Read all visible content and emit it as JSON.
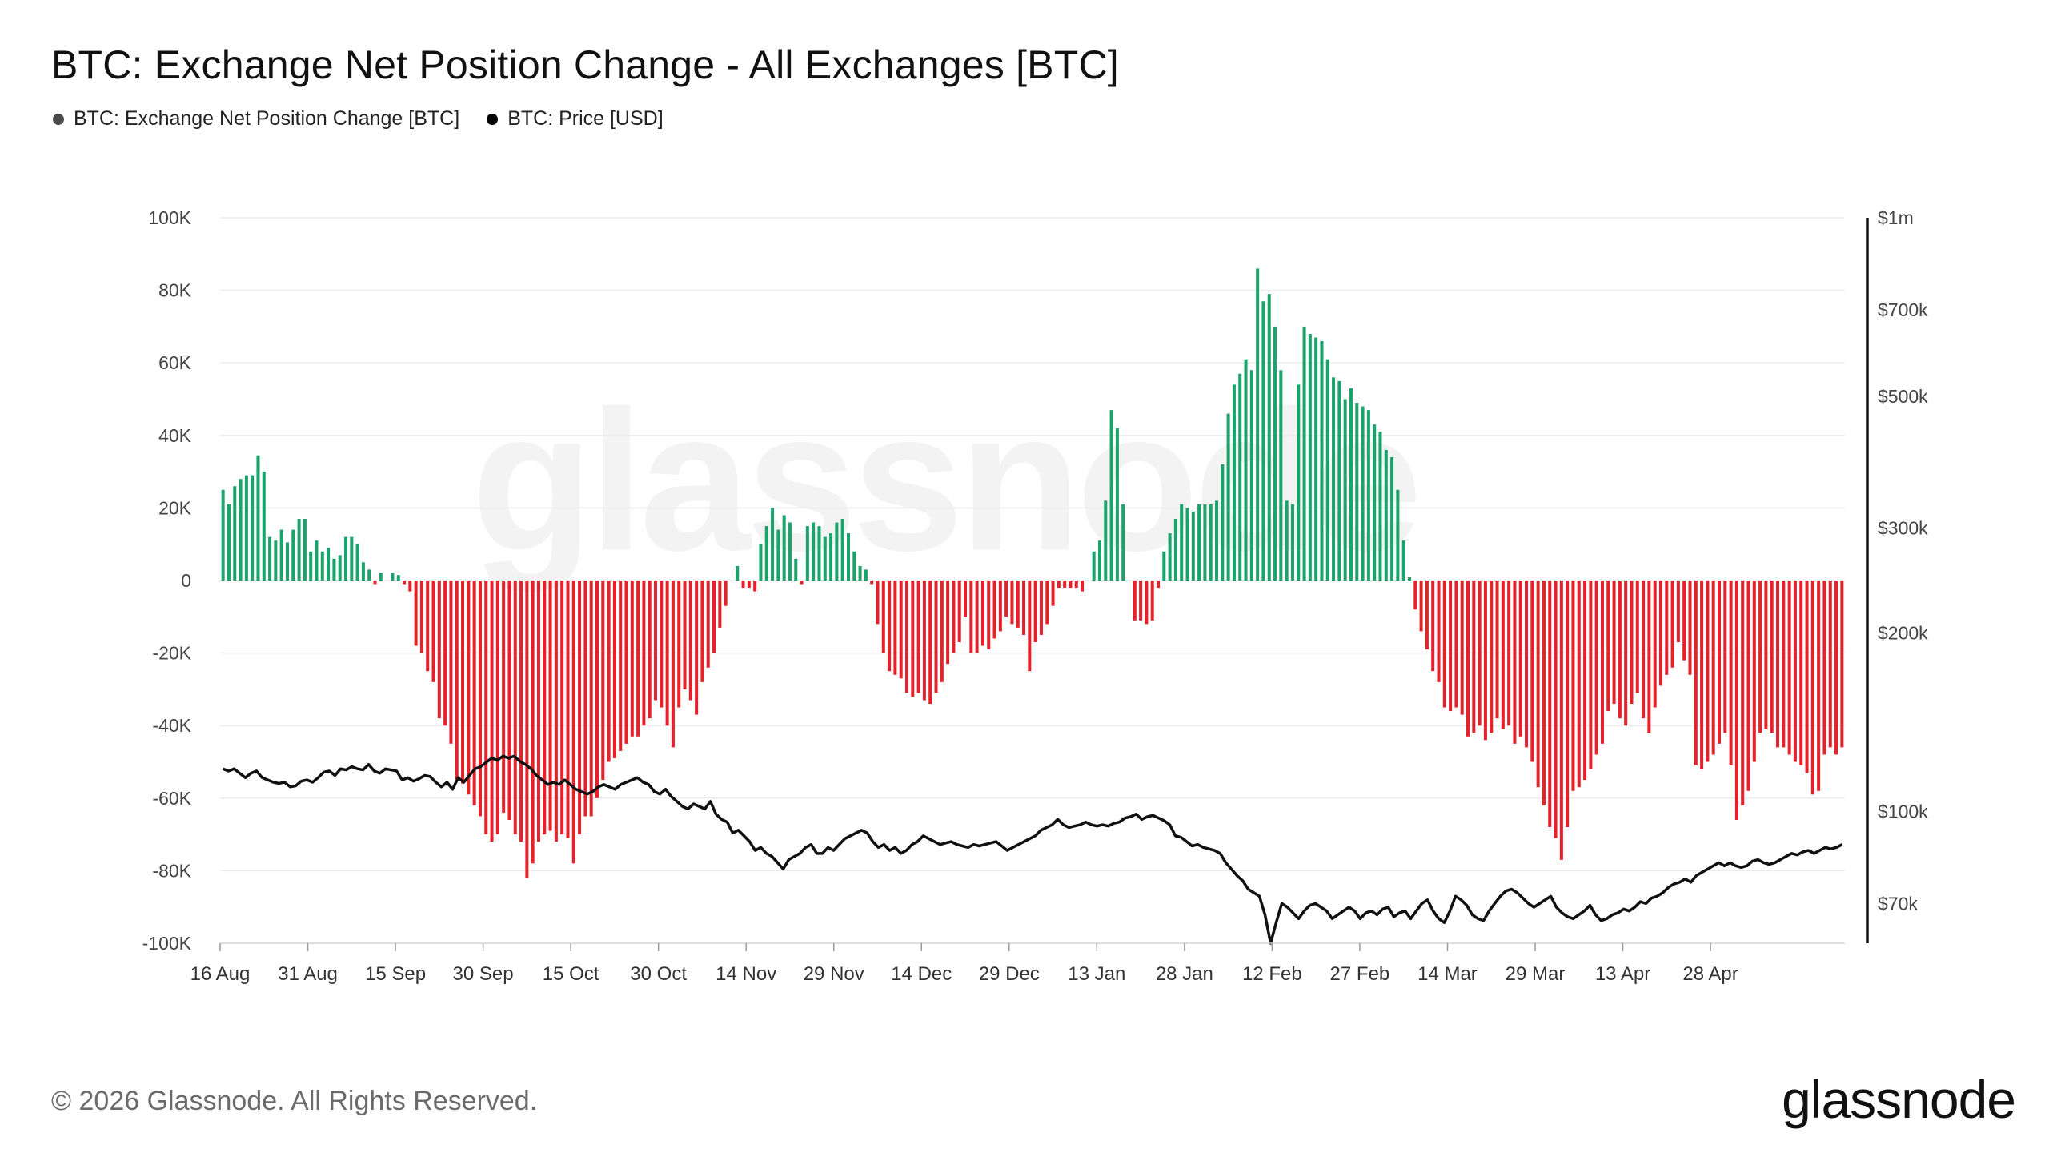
{
  "title": "BTC: Exchange Net Position Change - All Exchanges [BTC]",
  "legend": [
    {
      "label": "BTC: Exchange Net Position Change [BTC]",
      "color": "#4a4a4a"
    },
    {
      "label": "BTC: Price [USD]",
      "color": "#000000"
    }
  ],
  "watermark": "glassnode",
  "footer": "© 2026 Glassnode. All Rights Reserved.",
  "logo": "glassnode",
  "colors": {
    "positive": "#1aa36b",
    "negative": "#e5222b",
    "price_line": "#111111",
    "grid": "#ececec"
  },
  "chart_data": {
    "type": "bar",
    "title": "BTC: Exchange Net Position Change - All Exchanges [BTC]",
    "x_tick_labels": [
      "16 Aug",
      "31 Aug",
      "15 Sep",
      "30 Sep",
      "15 Oct",
      "30 Oct",
      "14 Nov",
      "29 Nov",
      "14 Dec",
      "29 Dec",
      "13 Jan",
      "28 Jan",
      "12 Feb",
      "27 Feb",
      "14 Mar",
      "29 Mar",
      "13 Apr",
      "28 Apr"
    ],
    "left_axis": {
      "ticks": [
        100000,
        80000,
        60000,
        40000,
        20000,
        0,
        -20000,
        -40000,
        -60000,
        -80000,
        -100000
      ],
      "tick_labels": [
        "100K",
        "80K",
        "60K",
        "40K",
        "20K",
        "0",
        "-20K",
        "-40K",
        "-60K",
        "-80K",
        "-100K"
      ],
      "ylim": [
        -100000,
        100000
      ]
    },
    "right_axis": {
      "scale": "log",
      "ticks": [
        1000000,
        700000,
        500000,
        300000,
        200000,
        100000,
        70000
      ],
      "tick_labels": [
        "$1m",
        "$700k",
        "$500k",
        "$300k",
        "$200k",
        "$100k",
        "$70k"
      ],
      "ylim": [
        60000,
        1000000
      ]
    },
    "grid": true,
    "series": [
      {
        "name": "BTC: Exchange Net Position Change [BTC]",
        "kind": "bar",
        "positive_color": "#1aa36b",
        "negative_color": "#e5222b",
        "values": [
          25000,
          21000,
          26000,
          28000,
          29000,
          29000,
          34500,
          30000,
          12000,
          11000,
          14000,
          10500,
          14000,
          17000,
          17000,
          8000,
          11000,
          8000,
          9000,
          6000,
          7000,
          12000,
          12000,
          10000,
          5000,
          3000,
          -1000,
          2000,
          0,
          2000,
          1500,
          -1000,
          -3000,
          -18000,
          -20000,
          -25000,
          -28000,
          -38000,
          -40000,
          -45000,
          -55000,
          -56000,
          -59000,
          -62000,
          -65000,
          -70000,
          -72000,
          -70000,
          -64000,
          -66000,
          -70000,
          -72000,
          -82000,
          -78000,
          -72000,
          -70000,
          -69000,
          -72000,
          -70000,
          -71000,
          -78000,
          -70000,
          -65000,
          -65000,
          -60000,
          -55000,
          -50000,
          -49000,
          -47000,
          -45000,
          -43000,
          -43000,
          -40000,
          -38000,
          -33000,
          -35000,
          -40000,
          -46000,
          -35000,
          -30000,
          -33000,
          -37000,
          -28000,
          -24000,
          -20000,
          -13000,
          -7000,
          0,
          4000,
          -2000,
          -2000,
          -3000,
          10000,
          15000,
          20000,
          14000,
          18000,
          16000,
          6000,
          -1000,
          15000,
          16000,
          15000,
          12000,
          13000,
          16000,
          17000,
          13000,
          8000,
          4000,
          3000,
          -1000,
          -12000,
          -20000,
          -25000,
          -26000,
          -27000,
          -31000,
          -32000,
          -31000,
          -33000,
          -34000,
          -31000,
          -28000,
          -23000,
          -20000,
          -17000,
          -10000,
          -20000,
          -20000,
          -18000,
          -19000,
          -16000,
          -14000,
          -10000,
          -12000,
          -13000,
          -15000,
          -25000,
          -17000,
          -15000,
          -12000,
          -7000,
          -2000,
          -2000,
          -2000,
          -2000,
          -3000,
          0,
          8000,
          11000,
          22000,
          47000,
          42000,
          21000,
          0,
          -11000,
          -11000,
          -12000,
          -11000,
          -2000,
          8000,
          13000,
          17000,
          21000,
          20000,
          19000,
          21000,
          21000,
          21000,
          22000,
          32000,
          46000,
          54000,
          57000,
          61000,
          58000,
          86000,
          77000,
          79000,
          70000,
          58000,
          22000,
          21000,
          54000,
          70000,
          68000,
          67000,
          66000,
          61000,
          56000,
          55000,
          50000,
          53000,
          49000,
          48000,
          47000,
          43000,
          41000,
          36000,
          34000,
          25000,
          11000,
          1000,
          -8000,
          -14000,
          -19000,
          -25000,
          -28000,
          -35000,
          -36000,
          -35000,
          -37000,
          -43000,
          -42000,
          -40000,
          -44000,
          -42000,
          -38000,
          -41000,
          -40000,
          -45000,
          -43000,
          -46000,
          -50000,
          -57000,
          -62000,
          -68000,
          -71000,
          -77000,
          -68000,
          -58000,
          -57000,
          -55000,
          -52000,
          -48000,
          -45000,
          -36000,
          -34000,
          -38000,
          -40000,
          -34000,
          -31000,
          -38000,
          -42000,
          -35000,
          -29000,
          -26000,
          -24000,
          -17000,
          -22000,
          -26000,
          -51000,
          -52000,
          -50000,
          -48000,
          -45000,
          -42000,
          -51000,
          -66000,
          -62000,
          -58000,
          -50000,
          -42000,
          -41000,
          -42000,
          -46000,
          -46000,
          -48000,
          -50000,
          -51000,
          -53000,
          -59000,
          -58000,
          -48000,
          -46000,
          -48000,
          -46000
        ]
      },
      {
        "name": "BTC: Price [USD]",
        "kind": "line",
        "color": "#111111",
        "values": [
          118000,
          117000,
          118000,
          116000,
          114000,
          116000,
          117000,
          114000,
          113000,
          112000,
          111500,
          112000,
          110000,
          110500,
          112500,
          113000,
          112000,
          114000,
          116500,
          117000,
          115000,
          118000,
          117500,
          119000,
          118000,
          117500,
          120000,
          117000,
          116000,
          118000,
          117500,
          117000,
          113000,
          114000,
          112500,
          113500,
          115000,
          114500,
          112000,
          110000,
          112000,
          109000,
          114000,
          112000,
          115000,
          118000,
          119000,
          121000,
          123000,
          122000,
          124000,
          123000,
          124000,
          121500,
          120000,
          118000,
          115000,
          113000,
          111000,
          112000,
          111000,
          113000,
          111000,
          109000,
          108000,
          107000,
          108000,
          110000,
          111000,
          110000,
          109000,
          111000,
          112000,
          113000,
          114000,
          112000,
          111000,
          108000,
          107000,
          109000,
          106000,
          104000,
          102000,
          101000,
          103000,
          102000,
          101000,
          104000,
          99000,
          97000,
          96000,
          92000,
          93000,
          91000,
          89000,
          86000,
          87000,
          85000,
          84000,
          82000,
          80000,
          83000,
          84000,
          85000,
          87000,
          88000,
          85000,
          85000,
          87000,
          86000,
          88000,
          90000,
          91000,
          92000,
          93000,
          92000,
          89000,
          87000,
          88000,
          86000,
          87000,
          85000,
          86000,
          88000,
          89000,
          91000,
          90000,
          89000,
          88000,
          88500,
          89000,
          88000,
          87500,
          87000,
          88000,
          87500,
          88000,
          88500,
          89000,
          87500,
          86000,
          87000,
          88000,
          89000,
          90000,
          91000,
          93000,
          94000,
          95000,
          97000,
          95000,
          94000,
          94500,
          95000,
          96000,
          95000,
          94500,
          95000,
          94500,
          95500,
          96000,
          97500,
          98000,
          99000,
          97000,
          98000,
          98500,
          97500,
          96500,
          95000,
          91000,
          90500,
          89000,
          87500,
          88000,
          87000,
          86500,
          86000,
          85000,
          82000,
          80000,
          78000,
          76500,
          74000,
          73000,
          72000,
          67000,
          60000,
          65000,
          70000,
          69000,
          67500,
          66000,
          68000,
          69500,
          70000,
          69000,
          68000,
          66000,
          67000,
          68000,
          69000,
          68000,
          66000,
          67500,
          68000,
          67000,
          68500,
          69000,
          66500,
          67500,
          68000,
          66000,
          68000,
          70000,
          71000,
          68000,
          66000,
          65000,
          68000,
          72000,
          71000,
          69500,
          67000,
          66000,
          65500,
          68000,
          70000,
          72000,
          73500,
          74000,
          73000,
          71500,
          70000,
          69000,
          70000,
          71000,
          72000,
          69000,
          67500,
          66500,
          66000,
          67000,
          68000,
          69500,
          67000,
          65500,
          66000,
          67000,
          67500,
          68500,
          68000,
          69000,
          70500,
          70000,
          71500,
          72000,
          73000,
          74500,
          75500,
          76000,
          77000,
          76000,
          78000,
          79000,
          80000,
          81000,
          82000,
          81000,
          82000,
          81000,
          80500,
          81000,
          82500,
          83000,
          82000,
          81500,
          82000,
          83000,
          84000,
          85000,
          84500,
          85500,
          86000,
          85000,
          86000,
          87000,
          86500,
          87000,
          88000
        ]
      }
    ]
  }
}
